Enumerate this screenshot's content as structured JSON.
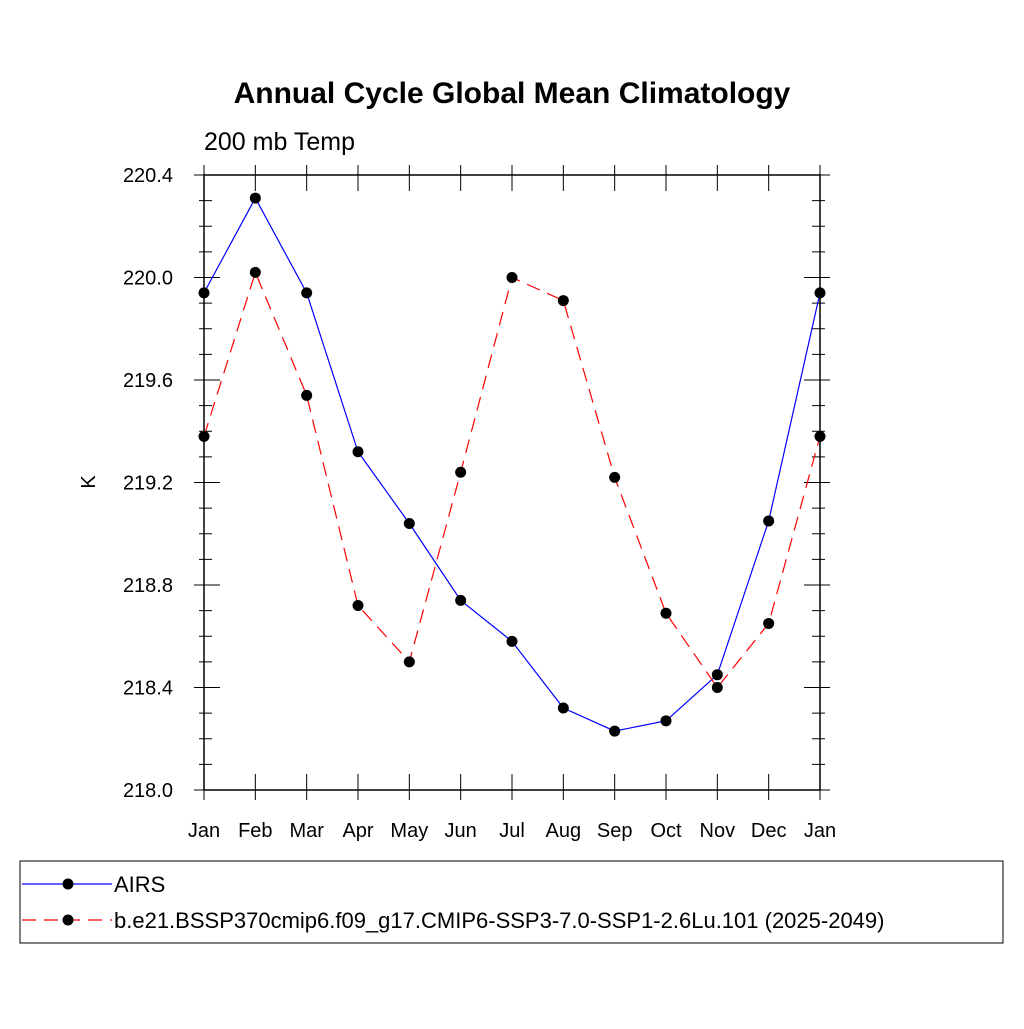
{
  "chart_data": {
    "type": "line",
    "title": "Annual Cycle Global Mean Climatology",
    "subtitle": "200 mb Temp",
    "xlabel": "",
    "ylabel": "K",
    "categories": [
      "Jan",
      "Feb",
      "Mar",
      "Apr",
      "May",
      "Jun",
      "Jul",
      "Aug",
      "Sep",
      "Oct",
      "Nov",
      "Dec",
      "Jan"
    ],
    "ylim": [
      218.0,
      220.4
    ],
    "yticks": [
      "218.0",
      "218.4",
      "218.8",
      "219.2",
      "219.6",
      "220.0",
      "220.4"
    ],
    "ytick_values": [
      218.0,
      218.4,
      218.8,
      219.2,
      219.6,
      220.0,
      220.4
    ],
    "grid": false,
    "legend_position": "bottom",
    "series": [
      {
        "name": "AIRS",
        "color": "#0000ff",
        "dash": "solid",
        "marker": "circle",
        "values": [
          219.94,
          220.31,
          219.94,
          219.32,
          219.04,
          218.74,
          218.58,
          218.32,
          218.23,
          218.27,
          218.45,
          219.05,
          219.94
        ]
      },
      {
        "name": "b.e21.BSSP370cmip6.f09_g17.CMIP6-SSP3-7.0-SSP1-2.6Lu.101 (2025-2049)",
        "color": "#ff0000",
        "dash": "dashed",
        "marker": "circle",
        "values": [
          219.38,
          220.02,
          219.54,
          218.72,
          218.5,
          219.24,
          220.0,
          219.91,
          219.22,
          218.69,
          218.4,
          218.65,
          219.38
        ]
      }
    ]
  }
}
